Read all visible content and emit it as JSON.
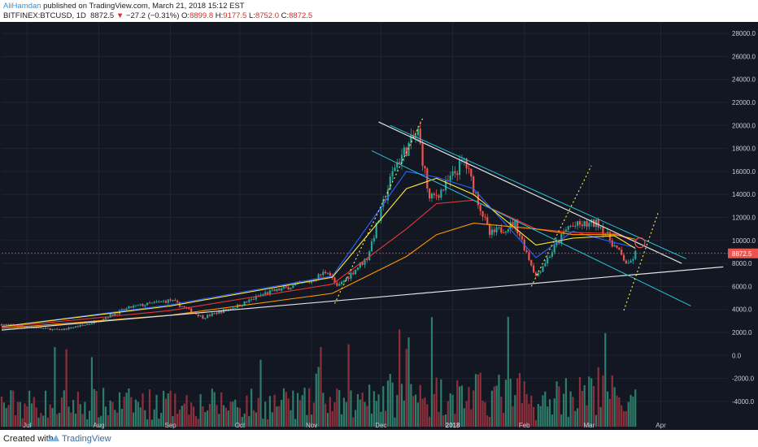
{
  "header": {
    "author": "AliHamdan",
    "published_text": " published on TradingView.com, March 21, 2018 15:12 EST",
    "symbol": "BITFINEX:BTCUSD, 1D",
    "last": "8872.5",
    "arrow": "▼",
    "change": "−27.2 (−0.31%)",
    "o_label": "O:",
    "o_value": "8899.8",
    "h_label": "H:",
    "h_value": "9177.5",
    "l_label": "L:",
    "l_value": "8752.0",
    "c_label": "C:",
    "c_value": "8872.5"
  },
  "footer": {
    "created_label": "Created with",
    "brand": "TradingView"
  },
  "colors": {
    "background": "#131722",
    "grid": "#1f2433",
    "axis_text": "#c9ccd6",
    "up": "#26a69a",
    "down": "#ef5350",
    "up_volume": "#2e7d6b",
    "down_volume": "#8e2f3b",
    "ma_fast": "#2962ff",
    "ma_mid": "#ffeb3b",
    "ma_slow": "#e53935",
    "ma_slowest": "#ff9800",
    "trendline": "#e0e0e0",
    "channel": "#26c6da",
    "dotted": "#ffee58",
    "price_label_bg": "#ef5350"
  },
  "chart_data": {
    "type": "candlestick",
    "symbol": "BITFINEX:BTCUSD",
    "interval": "1D",
    "last_price": 8872.5,
    "last_price_label": "8872.5",
    "price_axis": {
      "ticks": [
        "-4000.0",
        "-2000.0",
        "0.0",
        "2000.0",
        "4000.0",
        "6000.0",
        "8000.0",
        "10000.0",
        "12000.0",
        "14000.0",
        "16000.0",
        "18000.0",
        "20000.0",
        "22000.0",
        "24000.0",
        "26000.0",
        "28000.0"
      ],
      "range": [
        -6200,
        29000
      ]
    },
    "time_axis": {
      "labels": [
        "Jul",
        "Aug",
        "Sep",
        "Oct",
        "Nov",
        "Dec",
        "2018",
        "Feb",
        "Mar",
        "Apr"
      ],
      "range": [
        "2017-06-20",
        "2018-04-30"
      ]
    },
    "price_path": [
      [
        "2017-06-20",
        2700
      ],
      [
        "2017-07-15",
        2200
      ],
      [
        "2017-07-28",
        2750
      ],
      [
        "2017-08-15",
        4200
      ],
      [
        "2017-09-01",
        4800
      ],
      [
        "2017-09-15",
        3300
      ],
      [
        "2017-09-30",
        4300
      ],
      [
        "2017-10-12",
        5400
      ],
      [
        "2017-10-31",
        6400
      ],
      [
        "2017-11-08",
        7400
      ],
      [
        "2017-11-12",
        5900
      ],
      [
        "2017-11-25",
        8500
      ],
      [
        "2017-12-07",
        16500
      ],
      [
        "2017-12-17",
        19400
      ],
      [
        "2017-12-22",
        13500
      ],
      [
        "2017-12-28",
        14500
      ],
      [
        "2018-01-06",
        17000
      ],
      [
        "2018-01-17",
        10500
      ],
      [
        "2018-01-28",
        11500
      ],
      [
        "2018-02-06",
        6900
      ],
      [
        "2018-02-20",
        11200
      ],
      [
        "2018-03-05",
        11500
      ],
      [
        "2018-03-18",
        7800
      ],
      [
        "2018-03-21",
        8872.5
      ]
    ],
    "moving_averages": [
      {
        "path": [
          [
            "2017-06-20",
            2500
          ],
          [
            "2017-09-01",
            4400
          ],
          [
            "2017-11-10",
            6900
          ],
          [
            "2017-12-12",
            16000
          ],
          [
            "2017-12-25",
            15500
          ],
          [
            "2018-01-10",
            14500
          ],
          [
            "2018-02-06",
            8500
          ],
          [
            "2018-02-22",
            10800
          ],
          [
            "2018-03-12",
            9800
          ],
          [
            "2018-03-21",
            9400
          ]
        ]
      },
      {
        "path": [
          [
            "2017-06-20",
            2500
          ],
          [
            "2017-09-01",
            4300
          ],
          [
            "2017-11-10",
            6800
          ],
          [
            "2017-12-12",
            14500
          ],
          [
            "2017-12-25",
            15400
          ],
          [
            "2018-01-10",
            14000
          ],
          [
            "2018-02-06",
            9600
          ],
          [
            "2018-02-22",
            10200
          ],
          [
            "2018-03-12",
            10400
          ],
          [
            "2018-03-21",
            9300
          ]
        ]
      },
      {
        "path": [
          [
            "2017-06-20",
            2450
          ],
          [
            "2017-09-01",
            3900
          ],
          [
            "2017-11-10",
            6200
          ],
          [
            "2017-12-12",
            11000
          ],
          [
            "2017-12-25",
            13200
          ],
          [
            "2018-01-10",
            13500
          ],
          [
            "2018-02-06",
            11000
          ],
          [
            "2018-02-22",
            10700
          ],
          [
            "2018-03-12",
            10600
          ],
          [
            "2018-03-21",
            9900
          ]
        ]
      },
      {
        "path": [
          [
            "2017-06-20",
            2350
          ],
          [
            "2017-09-01",
            3500
          ],
          [
            "2017-11-10",
            5400
          ],
          [
            "2017-12-12",
            8600
          ],
          [
            "2017-12-25",
            10500
          ],
          [
            "2018-01-10",
            11500
          ],
          [
            "2018-02-06",
            11000
          ],
          [
            "2018-02-22",
            10500
          ],
          [
            "2018-03-12",
            10500
          ],
          [
            "2018-03-21",
            10100
          ]
        ]
      }
    ],
    "drawings": {
      "support_line": [
        [
          "2017-06-20",
          2200
        ],
        [
          "2018-04-28",
          7700
        ]
      ],
      "resistance_line": [
        [
          "2017-11-30",
          20300
        ],
        [
          "2018-04-10",
          8000
        ]
      ],
      "channel_upper": [
        [
          "2017-12-05",
          20000
        ],
        [
          "2018-04-12",
          8400
        ]
      ],
      "channel_lower": [
        [
          "2017-11-27",
          17800
        ],
        [
          "2018-04-14",
          4300
        ]
      ],
      "dotted_lines": [
        [
          [
            "2017-11-11",
            4500
          ],
          [
            "2017-12-19",
            20600
          ]
        ],
        [
          [
            "2018-02-04",
            6000
          ],
          [
            "2018-03-02",
            16500
          ]
        ],
        [
          [
            "2018-03-16",
            3900
          ],
          [
            "2018-03-31",
            12500
          ]
        ]
      ],
      "circle_at": [
        "2018-03-23",
        9800
      ],
      "last_price_level": 8872.5
    }
  }
}
